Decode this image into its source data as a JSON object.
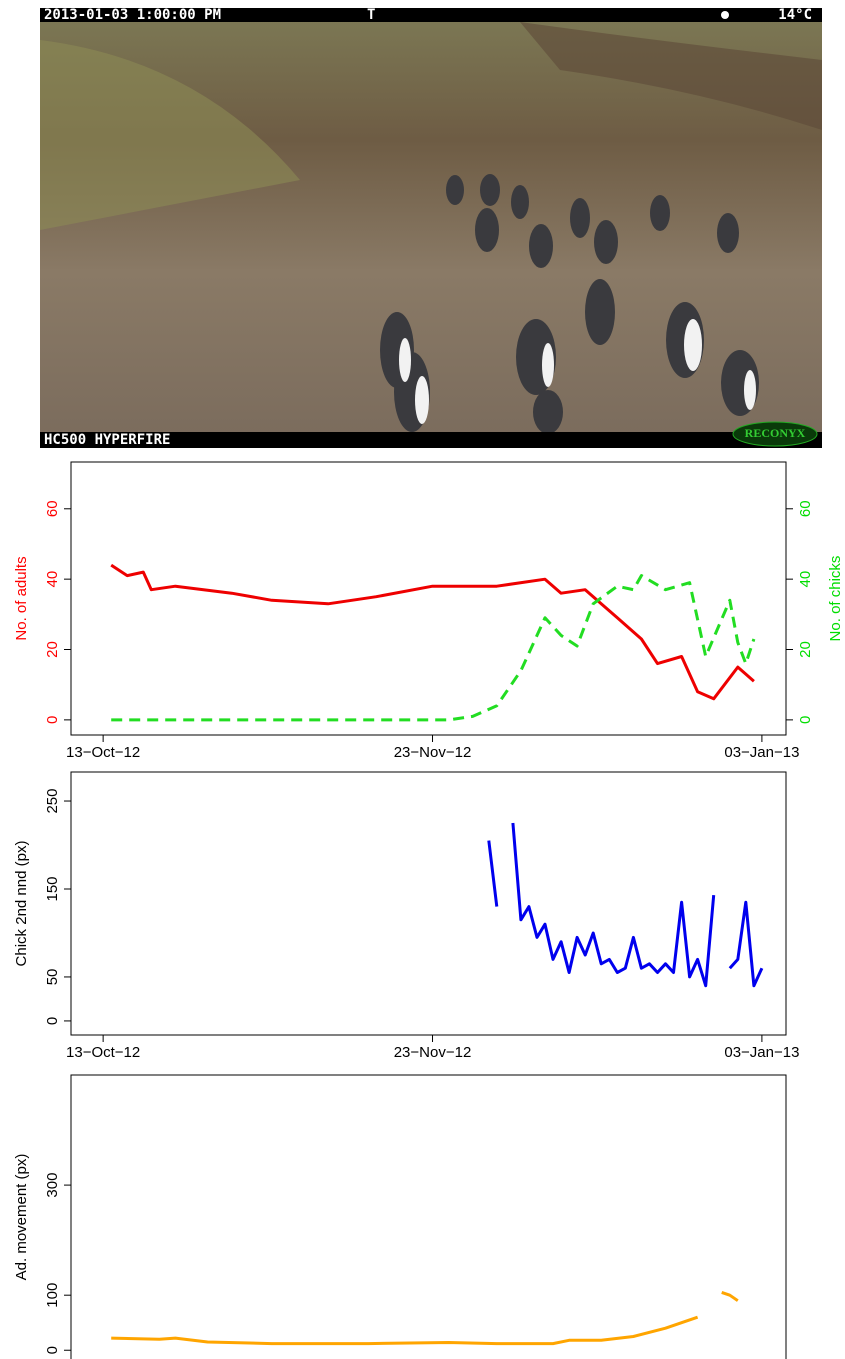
{
  "photo": {
    "timestamp": "2013-01-03 1:00:00 PM",
    "flag": "T",
    "temperature": "14°C",
    "model": "HC500 HYPERFIRE",
    "brand": "RECONYX"
  },
  "chart_data": [
    {
      "type": "line",
      "ylabel": "No. of adults",
      "y2label": "No. of chicks",
      "ylabel_color": "#ff0000",
      "y2label_color": "#00dd00",
      "xlim": [
        "2012-10-09",
        "2013-01-06"
      ],
      "xticks": [
        {
          "value": "2012-10-13",
          "label": "13−Oct−12"
        },
        {
          "value": "2012-11-23",
          "label": "23−Nov−12"
        },
        {
          "value": "2013-01-03",
          "label": "03−Jan−13"
        }
      ],
      "ylim": [
        -4.3,
        73.3
      ],
      "yticks": [
        0,
        20,
        40,
        60
      ],
      "y2lim": [
        -4.3,
        73.3
      ],
      "y2ticks": [
        0,
        20,
        40,
        60
      ],
      "series": [
        {
          "color": "#ee0000",
          "dash": false,
          "x": [
            "2012-10-14",
            "2012-10-16",
            "2012-10-18",
            "2012-10-19",
            "2012-10-22",
            "2012-10-29",
            "2012-11-03",
            "2012-11-10",
            "2012-11-16",
            "2012-11-23",
            "2012-12-01",
            "2012-12-07",
            "2012-12-09",
            "2012-12-12",
            "2012-12-14",
            "2012-12-16",
            "2012-12-19",
            "2012-12-21",
            "2012-12-24",
            "2012-12-26",
            "2012-12-28",
            "2012-12-31",
            "2013-01-01",
            "2013-01-02"
          ],
          "values": [
            44,
            41,
            42,
            37,
            38,
            36,
            34,
            33,
            35,
            38,
            38,
            40,
            36,
            37,
            33,
            29,
            23,
            16,
            18,
            8,
            6,
            15,
            13,
            11
          ]
        },
        {
          "color": "#22dd22",
          "dash": true,
          "axis": "y2",
          "x": [
            "2012-10-14",
            "2012-11-25",
            "2012-11-28",
            "2012-12-01",
            "2012-12-04",
            "2012-12-06",
            "2012-12-07",
            "2012-12-09",
            "2012-12-11",
            "2012-12-13",
            "2012-12-16",
            "2012-12-18",
            "2012-12-19",
            "2012-12-22",
            "2012-12-25",
            "2012-12-27",
            "2012-12-30",
            "2012-12-31",
            "2013-01-01",
            "2013-01-02"
          ],
          "values": [
            0,
            0,
            1,
            4,
            14,
            24,
            29,
            24,
            21,
            33,
            38,
            37,
            41,
            37,
            39,
            18,
            34,
            22,
            16,
            23
          ]
        }
      ]
    },
    {
      "type": "line",
      "ylabel": "Chick 2nd nnd (px)",
      "xlim": [
        "2012-10-09",
        "2013-01-06"
      ],
      "xticks": [
        {
          "value": "2012-10-13",
          "label": "13−Oct−12"
        },
        {
          "value": "2012-11-23",
          "label": "23−Nov−12"
        },
        {
          "value": "2013-01-03",
          "label": "03−Jan−13"
        }
      ],
      "ylim": [
        -16,
        283
      ],
      "yticks": [
        0,
        50,
        150,
        250
      ],
      "series": [
        {
          "color": "#0000ee",
          "dash": false,
          "x": [
            "2012-11-30",
            "2012-12-01",
            "2012-12-02",
            "2012-12-03",
            "2012-12-04",
            "2012-12-05",
            "2012-12-06",
            "2012-12-07",
            "2012-12-08",
            "2012-12-09",
            "2012-12-10",
            "2012-12-11",
            "2012-12-12",
            "2012-12-13",
            "2012-12-14",
            "2012-12-15",
            "2012-12-16",
            "2012-12-17",
            "2012-12-18",
            "2012-12-19",
            "2012-12-20",
            "2012-12-21",
            "2012-12-22",
            "2012-12-23",
            "2012-12-24",
            "2012-12-25",
            "2012-12-26",
            "2012-12-27",
            "2012-12-28",
            "2012-12-29",
            "2012-12-30",
            "2012-12-31",
            "2013-01-01",
            "2013-01-02",
            "2013-01-03"
          ],
          "values": [
            205,
            130,
            null,
            225,
            115,
            130,
            95,
            110,
            70,
            90,
            55,
            95,
            75,
            100,
            65,
            70,
            55,
            60,
            95,
            60,
            65,
            55,
            65,
            55,
            135,
            50,
            70,
            40,
            143,
            null,
            60,
            70,
            135,
            40,
            60
          ]
        }
      ]
    },
    {
      "type": "line",
      "ylabel": "Ad. movement (px)",
      "xlim": [
        "2012-10-09",
        "2013-01-06"
      ],
      "ylim": [
        -25,
        500
      ],
      "yticks": [
        0,
        100,
        300
      ],
      "series": [
        {
          "color": "#ffa500",
          "dash": false,
          "x": [
            "2012-10-14",
            "2012-10-20",
            "2012-10-22",
            "2012-10-26",
            "2012-11-03",
            "2012-11-15",
            "2012-11-25",
            "2012-12-01",
            "2012-12-08",
            "2012-12-10",
            "2012-12-14",
            "2012-12-18",
            "2012-12-22",
            "2012-12-26",
            "2012-12-27",
            "2012-12-29",
            "2012-12-30",
            "2012-12-31"
          ],
          "values": [
            22,
            20,
            22,
            15,
            12,
            12,
            14,
            12,
            12,
            18,
            18,
            25,
            40,
            60,
            null,
            105,
            100,
            90
          ]
        }
      ]
    }
  ]
}
